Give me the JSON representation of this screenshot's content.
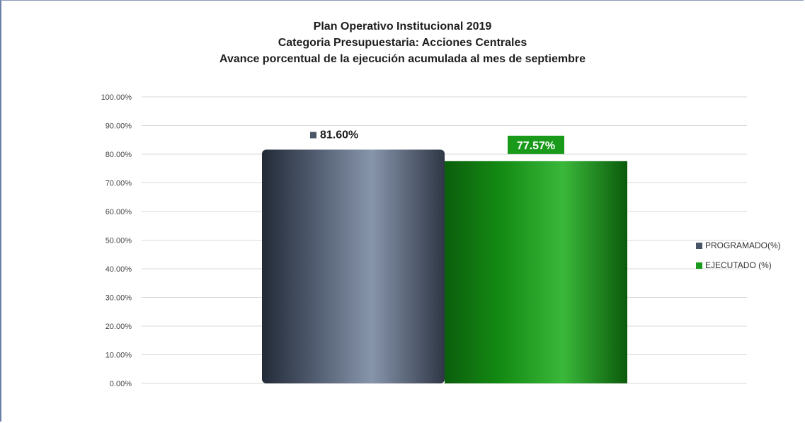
{
  "chart_data": {
    "type": "bar",
    "title": "Plan Operativo Institucional 2019",
    "subtitle_1": "Categoria Presupuestaria: Acciones Centrales",
    "subtitle_2": "Avance porcentual de la ejecución acumulada al mes de septiembre",
    "ylim": [
      0,
      100
    ],
    "yticks": [
      "0.00%",
      "10.00%",
      "20.00%",
      "30.00%",
      "40.00%",
      "50.00%",
      "60.00%",
      "70.00%",
      "80.00%",
      "90.00%",
      "100.00%"
    ],
    "grid": true,
    "legend_position": "right",
    "series": [
      {
        "name": "PROGRAMADO(%)",
        "value": 81.6,
        "label": "81.60%",
        "color": "#4a5568"
      },
      {
        "name": "EJECUTADO (%)",
        "value": 77.57,
        "label": "77.57%",
        "color": "#1a9a1a"
      }
    ]
  }
}
